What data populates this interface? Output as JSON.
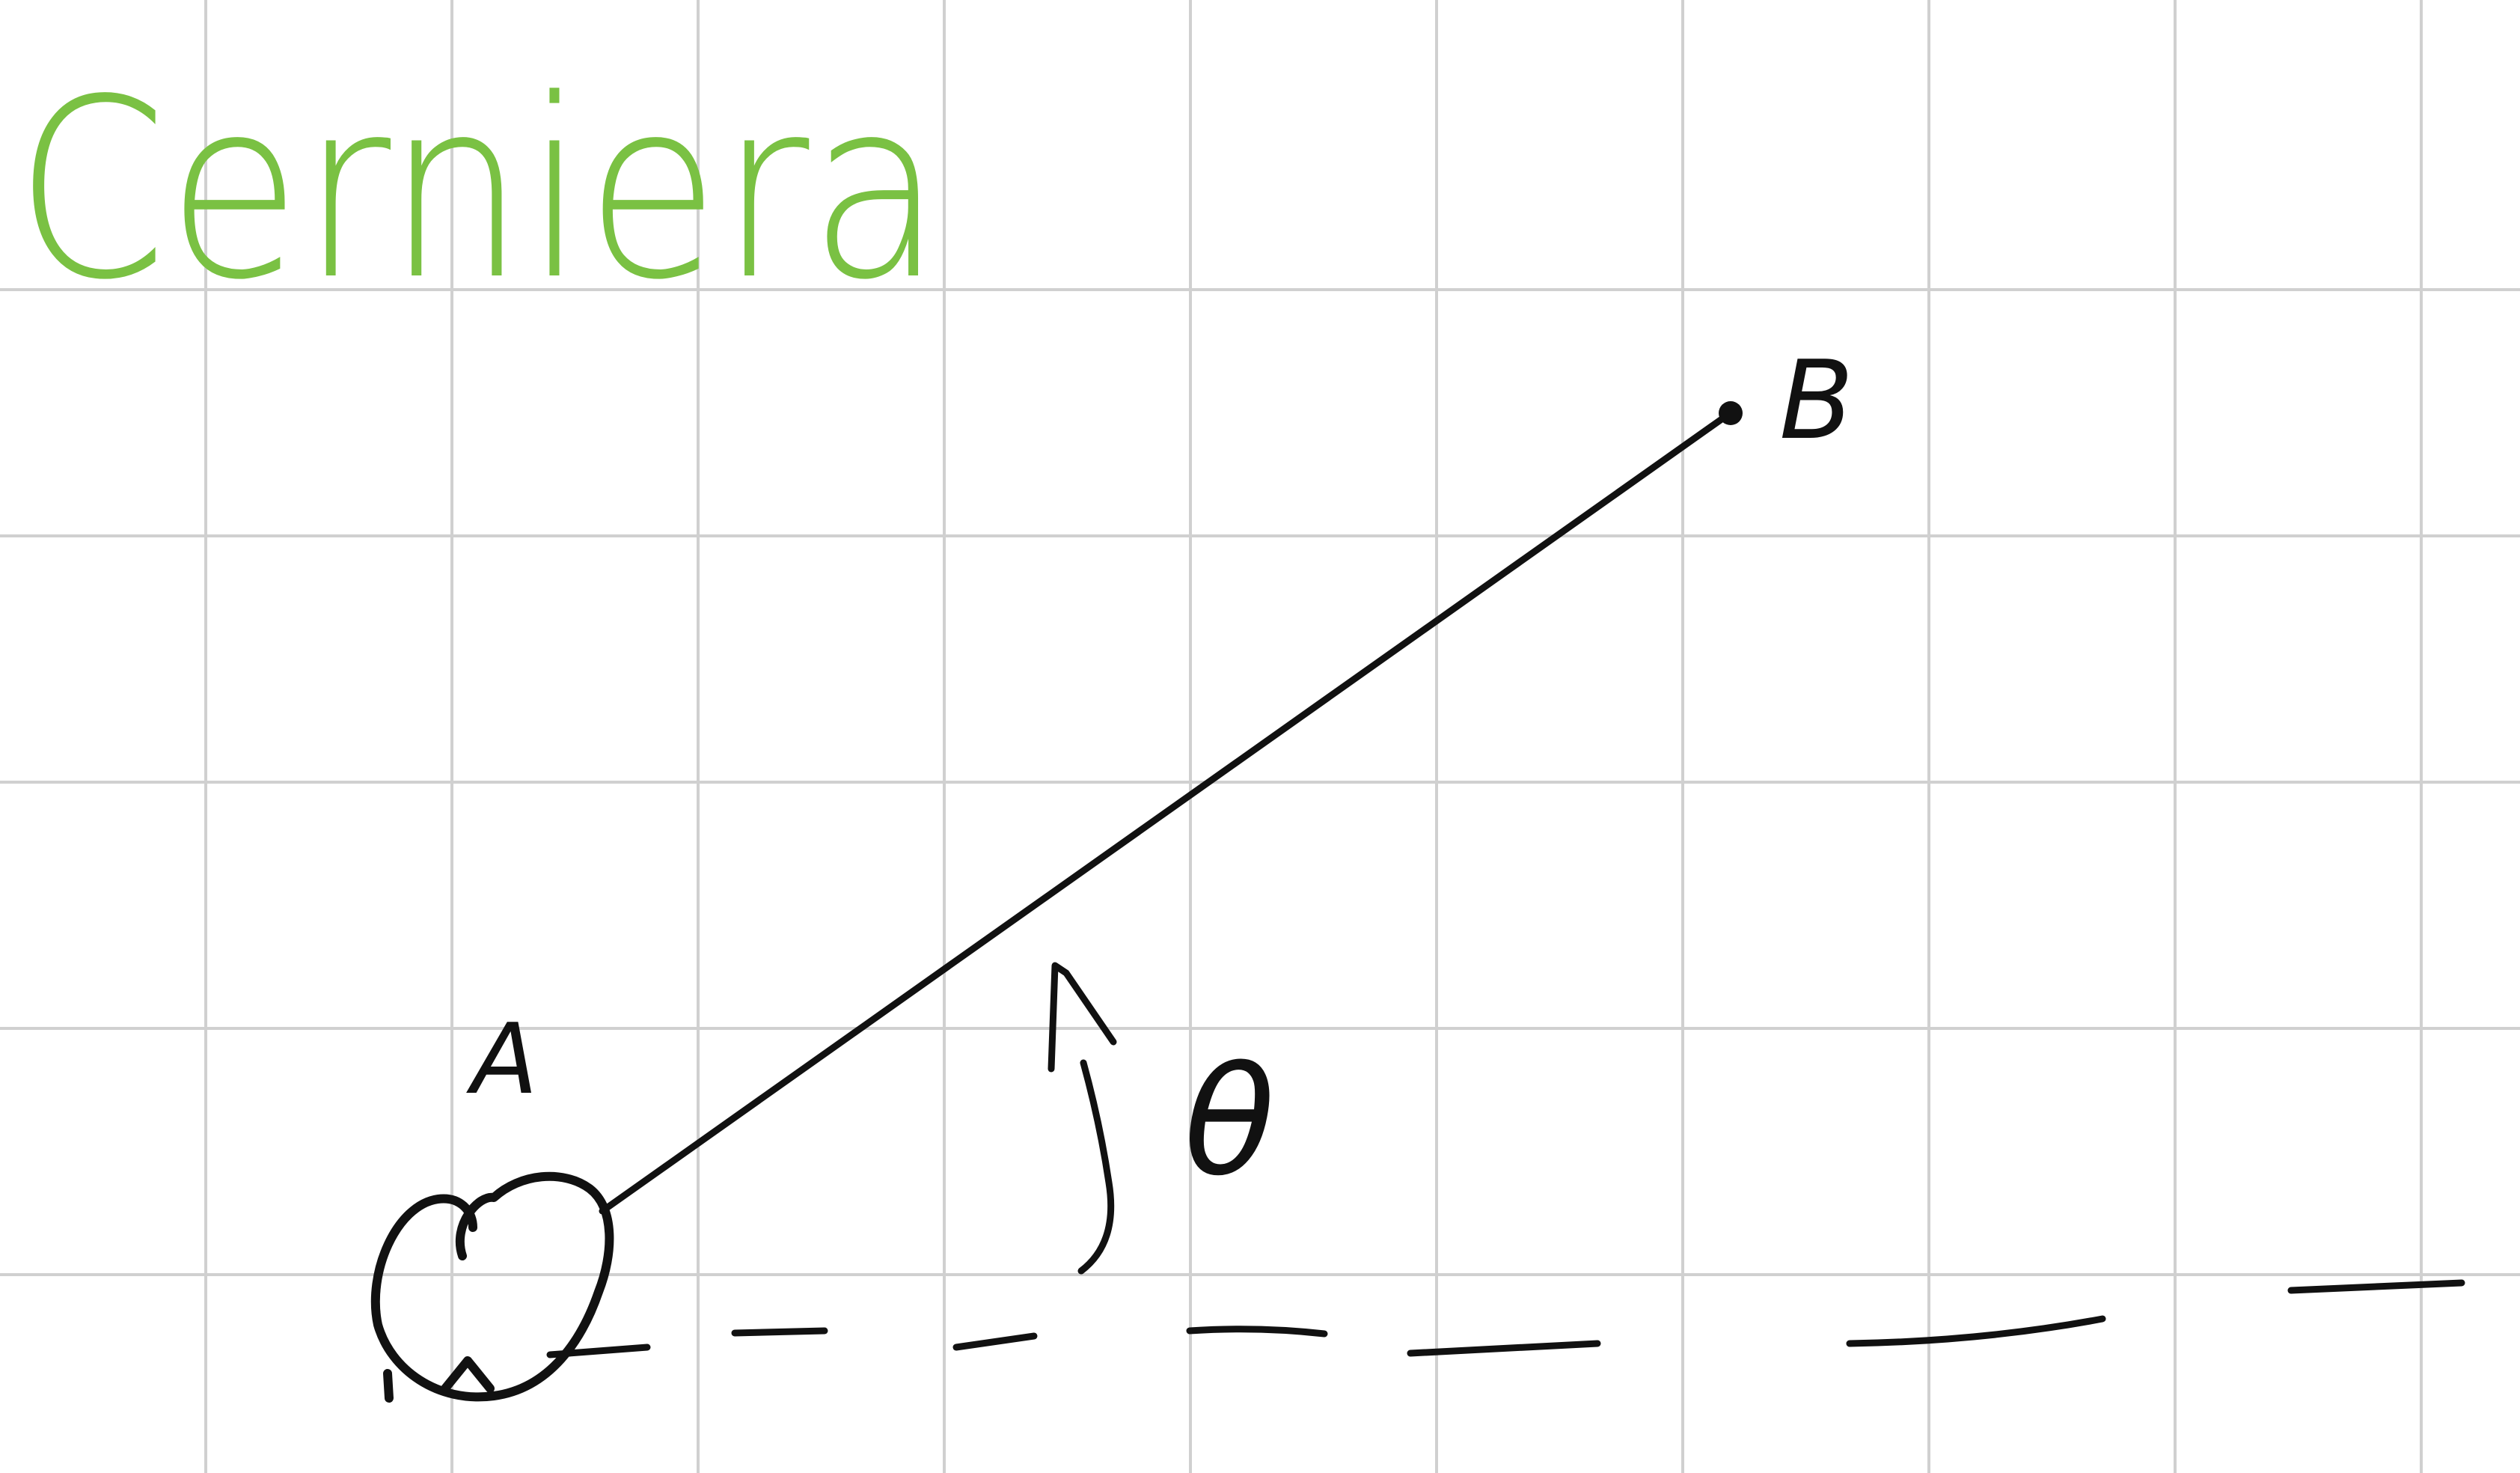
{
  "title": "Cerniera",
  "points": {
    "a_label": "A",
    "b_label": "B"
  },
  "angle": {
    "symbol": "θ"
  },
  "colors": {
    "background": "#ffffff",
    "grid": "#d0d0d0",
    "ink": "#111111",
    "title": "#7ac143"
  },
  "icons": {
    "hinge": "hinge-pivot-icon"
  }
}
